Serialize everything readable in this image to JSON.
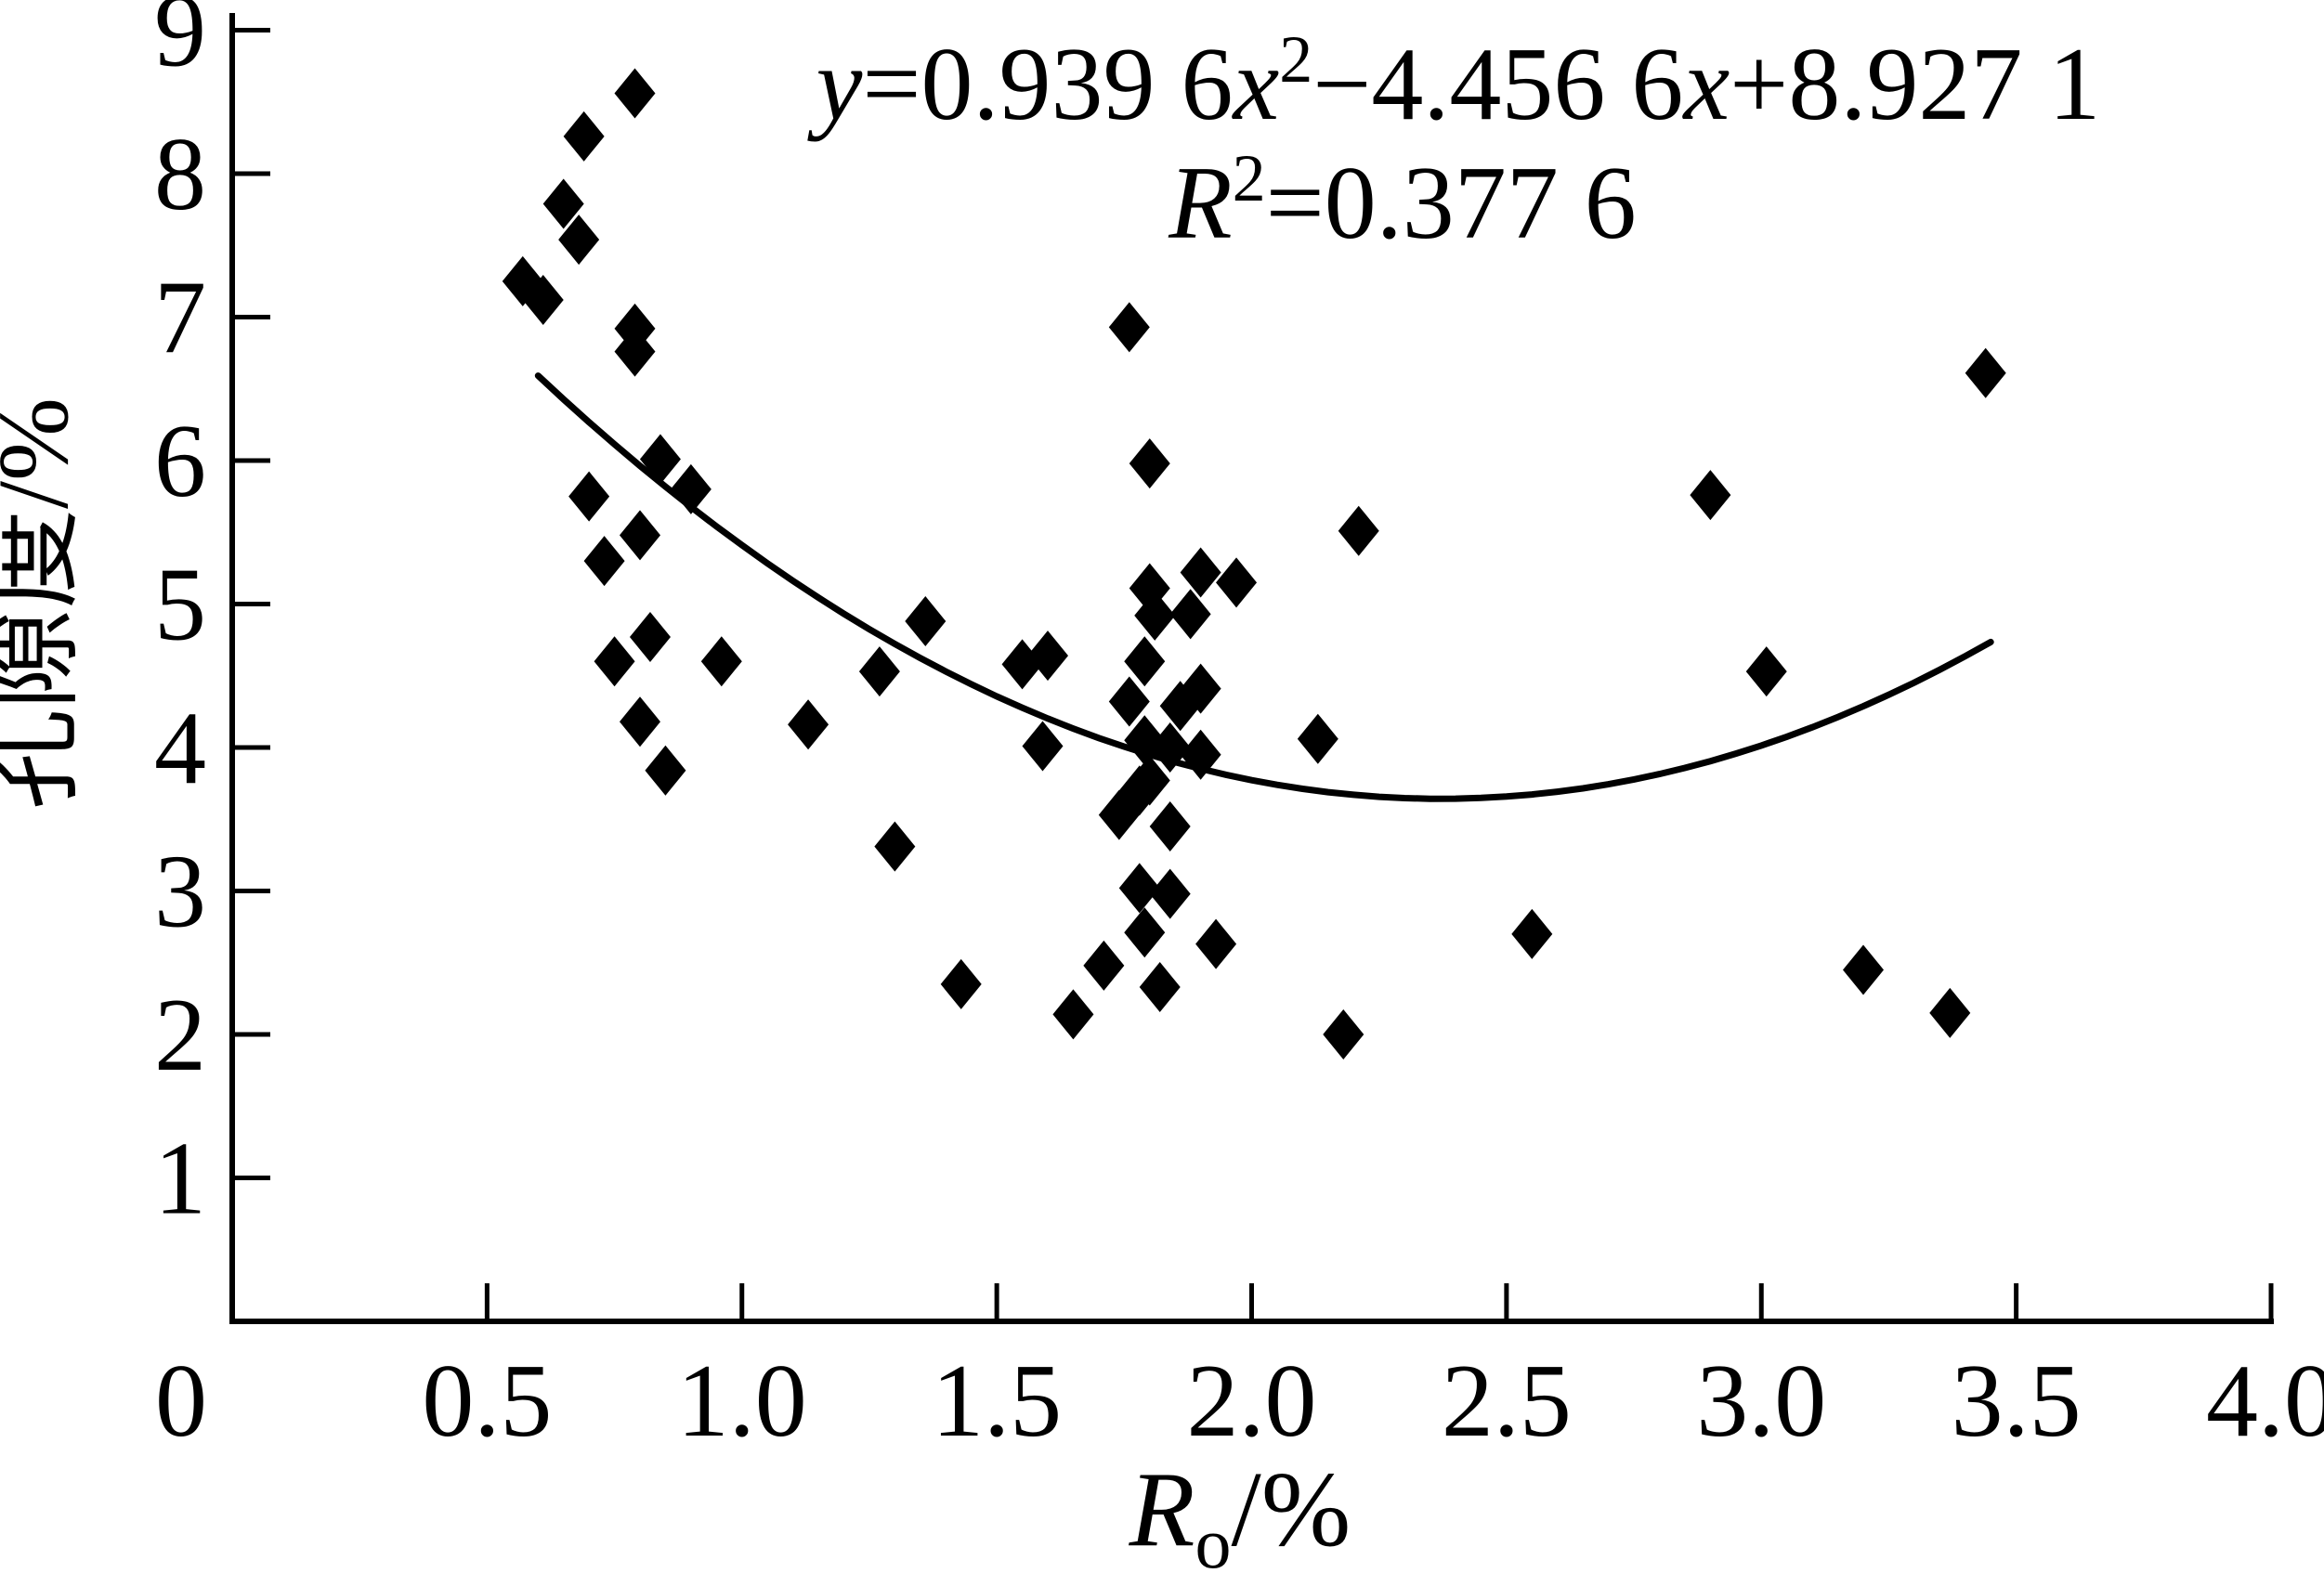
{
  "page": {
    "background": "#ffffff",
    "ink": "#000000"
  },
  "equation": {
    "line1": {
      "var_y": "y",
      "seg1": "=0.939 6",
      "var_x1": "x",
      "sup1": "2",
      "seg2": "−4.456 6",
      "var_x2": "x",
      "seg3": "+8.927 1"
    },
    "line2": {
      "var_R": "R",
      "sup": "2",
      "seg": "=0.377 6"
    }
  },
  "y_axis": {
    "title": "孔隙度/%",
    "tick_labels": [
      "1",
      "2",
      "3",
      "4",
      "5",
      "6",
      "7",
      "8",
      "9"
    ]
  },
  "x_axis": {
    "title_var": "R",
    "title_sub": "o",
    "title_rest": "/%",
    "tick_labels": [
      "0",
      "0.5",
      "1.0",
      "1.5",
      "2.0",
      "2.5",
      "3.0",
      "3.5",
      "4.0"
    ]
  },
  "chart_data": {
    "type": "scatter",
    "title": "",
    "xlabel": "Ro/%",
    "ylabel": "孔隙度/%",
    "xlim": [
      0,
      4.0
    ],
    "ylim": [
      0,
      9
    ],
    "x_ticks": [
      0,
      0.5,
      1.0,
      1.5,
      2.0,
      2.5,
      3.0,
      3.5,
      4.0
    ],
    "y_ticks": [
      1,
      2,
      3,
      4,
      5,
      6,
      7,
      8,
      9
    ],
    "grid": false,
    "legend": false,
    "marker": "filled-diamond",
    "marker_color": "#000000",
    "annotation_equation": "y=0.939 6x2−4.456 6x+8.927 1",
    "annotation_r_squared": "R2=0.377 6",
    "points": [
      [
        0.79,
        8.56
      ],
      [
        0.69,
        8.26
      ],
      [
        0.65,
        7.79
      ],
      [
        0.68,
        7.54
      ],
      [
        0.57,
        7.25
      ],
      [
        0.61,
        7.12
      ],
      [
        0.79,
        6.92
      ],
      [
        0.79,
        6.76
      ],
      [
        0.84,
        6.01
      ],
      [
        0.9,
        5.8
      ],
      [
        0.7,
        5.75
      ],
      [
        0.8,
        5.48
      ],
      [
        0.73,
        5.3
      ],
      [
        0.82,
        4.77
      ],
      [
        0.75,
        4.6
      ],
      [
        0.96,
        4.6
      ],
      [
        0.8,
        4.18
      ],
      [
        1.13,
        4.16
      ],
      [
        0.85,
        3.84
      ],
      [
        1.36,
        4.88
      ],
      [
        1.27,
        4.53
      ],
      [
        1.55,
        4.58
      ],
      [
        1.6,
        4.64
      ],
      [
        1.59,
        4.01
      ],
      [
        1.3,
        3.31
      ],
      [
        1.43,
        2.35
      ],
      [
        1.65,
        2.14
      ],
      [
        1.71,
        2.48
      ],
      [
        1.76,
        6.93
      ],
      [
        1.8,
        5.98
      ],
      [
        1.8,
        5.11
      ],
      [
        1.9,
        5.22
      ],
      [
        1.97,
        5.15
      ],
      [
        1.81,
        4.92
      ],
      [
        1.88,
        4.93
      ],
      [
        1.79,
        4.6
      ],
      [
        1.76,
        4.32
      ],
      [
        1.86,
        4.29
      ],
      [
        1.9,
        4.41
      ],
      [
        1.79,
        4.05
      ],
      [
        1.84,
        4.0
      ],
      [
        1.9,
        3.95
      ],
      [
        1.8,
        3.77
      ],
      [
        1.78,
        3.7
      ],
      [
        1.74,
        3.53
      ],
      [
        1.84,
        3.45
      ],
      [
        1.78,
        3.02
      ],
      [
        1.84,
        2.98
      ],
      [
        1.79,
        2.71
      ],
      [
        1.93,
        2.63
      ],
      [
        1.82,
        2.33
      ],
      [
        2.13,
        4.06
      ],
      [
        2.21,
        5.51
      ],
      [
        2.18,
        2.0
      ],
      [
        2.55,
        2.7
      ],
      [
        2.9,
        5.76
      ],
      [
        3.01,
        4.53
      ],
      [
        3.2,
        2.45
      ],
      [
        3.37,
        2.15
      ],
      [
        3.44,
        6.61
      ]
    ],
    "fit_curve": {
      "type": "quadratic",
      "coefficients": {
        "a": 0.9396,
        "b": -4.4566,
        "c": 8.9271
      },
      "domain": [
        0.6,
        3.45
      ]
    }
  }
}
